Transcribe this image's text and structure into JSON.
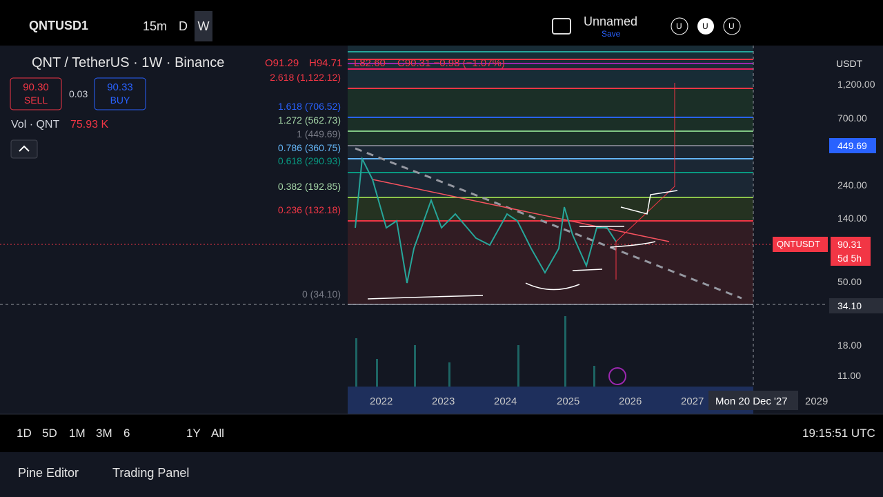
{
  "toolbar": {
    "symbol": "QNTUSD1",
    "intervals": [
      "15m",
      "D",
      "W"
    ],
    "layout_name": "Unnamed",
    "save": "Save",
    "avatars": [
      "U",
      "U",
      "U"
    ]
  },
  "legend": {
    "title": "QNT / TetherUS · 1W · Binance",
    "open": "O91.29",
    "high": "H94.71",
    "low": "L82.60",
    "close": "C90.31 −0.98 (−1.07%)",
    "sell_price": "90.30",
    "sell": "SELL",
    "spread": "0.03",
    "buy_price": "90.33",
    "buy": "BUY",
    "volume_label": "Vol · QNT",
    "volume": "75.93 K"
  },
  "fib_levels": [
    "2.618 (1,122.12)",
    "1.618 (706.52)",
    "1.272 (562.73)",
    "1 (449.69)",
    "0.786 (360.75)",
    "0.618 (290.93)",
    "0.382 (192.85)",
    "0.236 (132.18)",
    "0 (34.10)"
  ],
  "price_axis": {
    "currency": "USDT",
    "labels": [
      "1,200.00",
      "700.00",
      "240.00",
      "140.00",
      "50.00",
      "18.00",
      "11.00"
    ],
    "crosshair_price": "449.69",
    "symbol_tag": "QNTUSDT",
    "last_price": "90.31",
    "countdown": "5d 5h",
    "cursor_price": "34.10"
  },
  "time_axis": {
    "labels": [
      "2022",
      "2023",
      "2024",
      "2025",
      "2026",
      "2027",
      "2029"
    ],
    "cursor_date": "Mon 20 Dec '27"
  },
  "bottom_bar": {
    "ranges": [
      "1D",
      "5D",
      "1M",
      "3M",
      "6",
      "1Y",
      "All"
    ],
    "clock": "19:15:51 UTC"
  },
  "panel_tabs": [
    "Pine Editor",
    "Trading Panel"
  ]
}
